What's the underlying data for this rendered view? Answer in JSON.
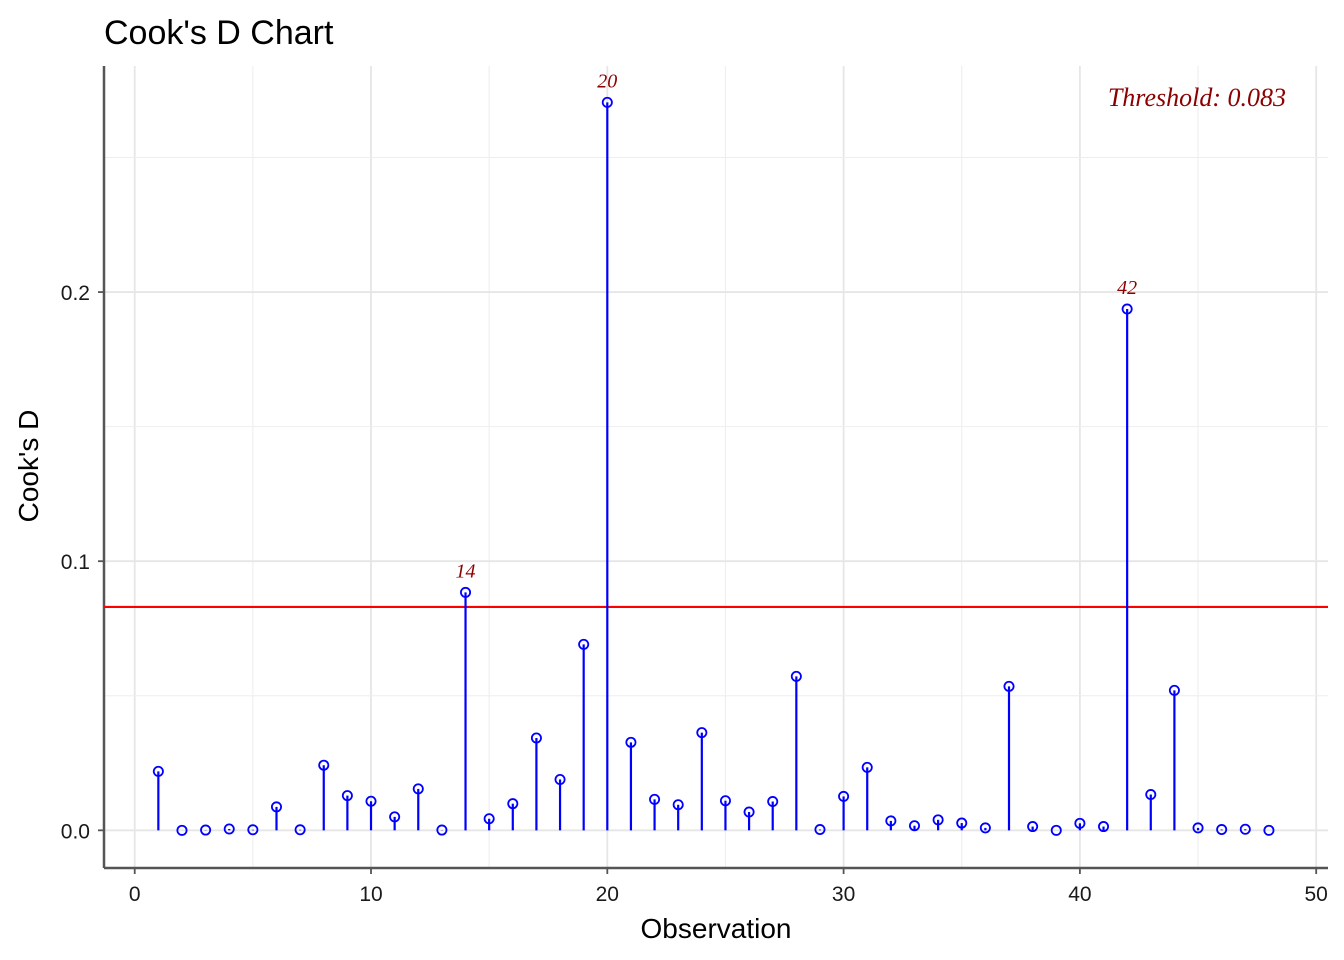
{
  "chart_data": {
    "type": "scatter",
    "title": "Cook's D Chart",
    "xlabel": "Observation",
    "ylabel": "Cook's D",
    "xlim": [
      -1.3,
      50.5
    ],
    "ylim": [
      -0.014,
      0.284
    ],
    "x_ticks": [
      0,
      10,
      20,
      30,
      40,
      50
    ],
    "x_tick_labels": [
      "0",
      "10",
      "20",
      "30",
      "40",
      "50"
    ],
    "y_ticks": [
      0.0,
      0.1,
      0.2
    ],
    "y_tick_labels": [
      "0.0",
      "0.1",
      "0.2"
    ],
    "grid": true,
    "threshold": 0.083,
    "threshold_label": "Threshold: 0.083",
    "threshold_color": "#ff0000",
    "stem_color": "#0000ff",
    "label_color": "#8b0000",
    "x": [
      1,
      2,
      3,
      4,
      5,
      6,
      7,
      8,
      9,
      10,
      11,
      12,
      13,
      14,
      15,
      16,
      17,
      18,
      19,
      20,
      21,
      22,
      23,
      24,
      25,
      26,
      27,
      28,
      29,
      30,
      31,
      32,
      33,
      34,
      35,
      36,
      37,
      38,
      39,
      40,
      41,
      42,
      43,
      44,
      45,
      46,
      47,
      48
    ],
    "values": [
      0.0219,
      0.0,
      0.0001,
      0.0005,
      0.0002,
      0.0087,
      0.0002,
      0.0242,
      0.0129,
      0.0108,
      0.005,
      0.0154,
      0.0001,
      0.0884,
      0.0043,
      0.0099,
      0.0343,
      0.0189,
      0.0691,
      0.2705,
      0.0327,
      0.0115,
      0.0095,
      0.0363,
      0.011,
      0.0068,
      0.0107,
      0.0572,
      0.0003,
      0.0126,
      0.0234,
      0.0035,
      0.0017,
      0.0039,
      0.0027,
      0.0009,
      0.0535,
      0.0014,
      0.0,
      0.0026,
      0.0014,
      0.1937,
      0.0133,
      0.052,
      0.0009,
      0.0003,
      0.0004,
      0.0
    ],
    "outlier_labels": [
      {
        "x": 14,
        "label": "14"
      },
      {
        "x": 20,
        "label": "20"
      },
      {
        "x": 42,
        "label": "42"
      }
    ]
  }
}
